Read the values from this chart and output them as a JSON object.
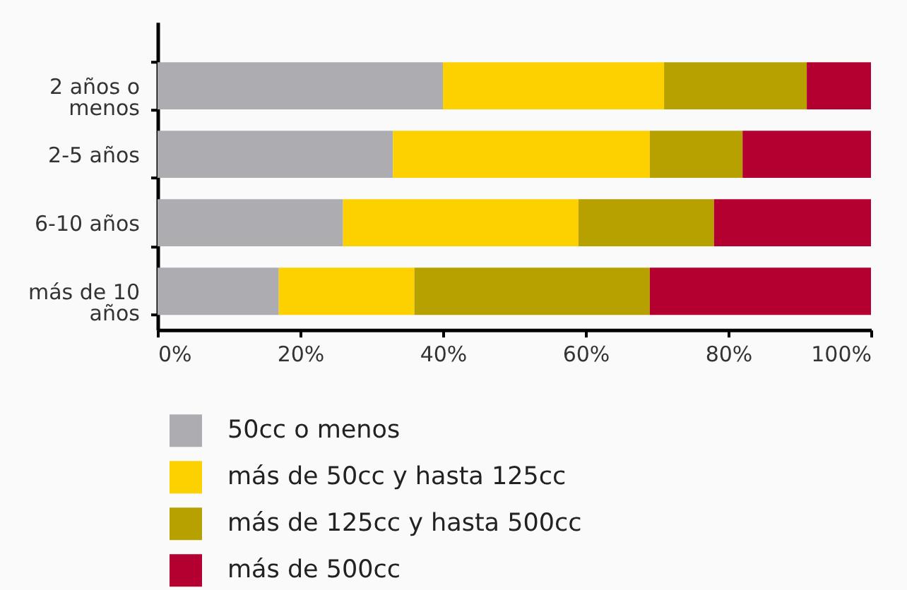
{
  "chart_data": {
    "type": "bar",
    "orientation": "horizontal",
    "stacked": true,
    "categories": [
      "2 años o menos",
      "2-5 años",
      "6-10 años",
      "más de 10 años"
    ],
    "series": [
      {
        "name": "50cc o menos",
        "color": "#adadb1",
        "values": [
          40,
          33,
          26,
          17
        ]
      },
      {
        "name": "más de 50cc y hasta 125cc",
        "color": "#fdd000",
        "values": [
          31,
          36,
          33,
          19
        ]
      },
      {
        "name": "más de 125cc y hasta 500cc",
        "color": "#b7a100",
        "values": [
          20,
          13,
          19,
          33
        ]
      },
      {
        "name": "más de 500cc",
        "color": "#b40031",
        "values": [
          9,
          18,
          22,
          31
        ]
      }
    ],
    "xlim": [
      0,
      100
    ],
    "xticks": [
      {
        "value": 0,
        "label": "0%"
      },
      {
        "value": 20,
        "label": "20%"
      },
      {
        "value": 40,
        "label": "40%"
      },
      {
        "value": 60,
        "label": "60%"
      },
      {
        "value": 80,
        "label": "80%"
      },
      {
        "value": 100,
        "label": "100%"
      }
    ],
    "legend": "bottom left"
  }
}
